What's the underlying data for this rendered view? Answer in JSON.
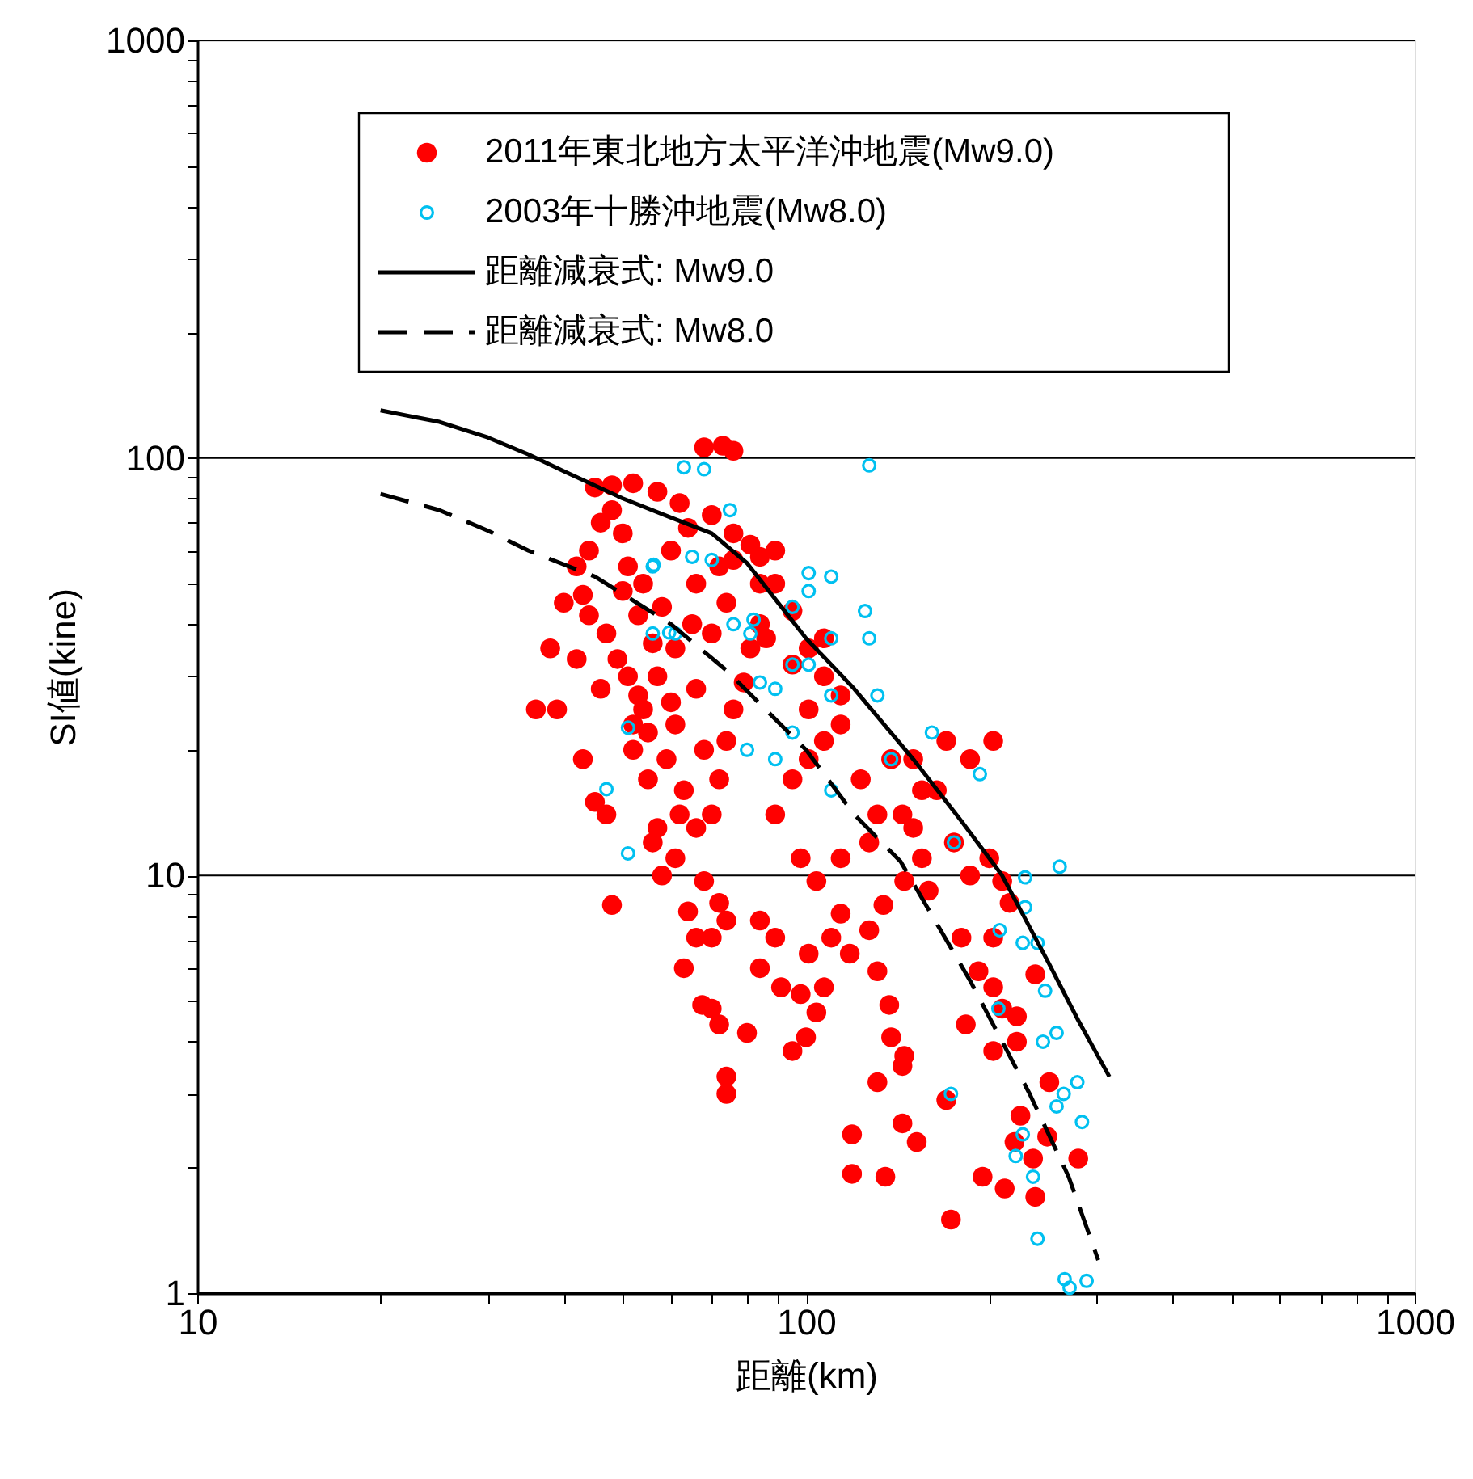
{
  "chart_data": {
    "type": "scatter",
    "xlabel": "距離(km)",
    "ylabel": "SI値(kine)",
    "log": "xy",
    "grid": "y",
    "legend": "top left",
    "xlim": [
      10,
      1000
    ],
    "ylim": [
      1,
      1000
    ],
    "xticks": [
      10,
      {
        "value": 20,
        "label": null
      },
      {
        "value": 30,
        "label": null
      },
      {
        "value": 40,
        "label": null
      },
      {
        "value": 50,
        "label": null
      },
      {
        "value": 60,
        "label": null
      },
      {
        "value": 70,
        "label": null
      },
      {
        "value": 80,
        "label": null
      },
      {
        "value": 90,
        "label": null
      },
      100,
      {
        "value": 200,
        "label": null
      },
      {
        "value": 300,
        "label": null
      },
      {
        "value": 400,
        "label": null
      },
      {
        "value": 500,
        "label": null
      },
      {
        "value": 600,
        "label": null
      },
      {
        "value": 700,
        "label": null
      },
      {
        "value": 800,
        "label": null
      },
      {
        "value": 900,
        "label": null
      },
      1000
    ],
    "yticks": [
      1,
      {
        "value": 2,
        "label": null
      },
      {
        "value": 3,
        "label": null
      },
      {
        "value": 4,
        "label": null
      },
      {
        "value": 5,
        "label": null
      },
      {
        "value": 6,
        "label": null
      },
      {
        "value": 7,
        "label": null
      },
      {
        "value": 8,
        "label": null
      },
      {
        "value": 9,
        "label": null
      },
      10,
      {
        "value": 20,
        "label": null
      },
      {
        "value": 30,
        "label": null
      },
      {
        "value": 40,
        "label": null
      },
      {
        "value": 50,
        "label": null
      },
      {
        "value": 60,
        "label": null
      },
      {
        "value": 70,
        "label": null
      },
      {
        "value": 80,
        "label": null
      },
      {
        "value": 90,
        "label": null
      },
      100,
      {
        "value": 200,
        "label": null
      },
      {
        "value": 300,
        "label": null
      },
      {
        "value": 400,
        "label": null
      },
      {
        "value": 500,
        "label": null
      },
      {
        "value": 600,
        "label": null
      },
      {
        "value": 700,
        "label": null
      },
      {
        "value": 800,
        "label": null
      },
      {
        "value": 900,
        "label": null
      },
      1000
    ],
    "series": [
      {
        "name": "2011年東北地方太平洋沖地震(Mw9.0)",
        "type": "scatter",
        "marker": "circle",
        "color": "#ff0000",
        "x": [
          68,
          73,
          76,
          48,
          52,
          57,
          62,
          70,
          76,
          81,
          84,
          89,
          39,
          42,
          44,
          43,
          45,
          47,
          46,
          48,
          50,
          51,
          54,
          53,
          56,
          57,
          54,
          61,
          59,
          63,
          66,
          57,
          70,
          72,
          74,
          76,
          79,
          66,
          61,
          70,
          74,
          66,
          81,
          84,
          86,
          51,
          52,
          55,
          61,
          68,
          72,
          74,
          84,
          89,
          70,
          66,
          63,
          70,
          72,
          74,
          74,
          67.5,
          80,
          91,
          84,
          101,
          98,
          95,
          100,
          104,
          107,
          110,
          114,
          118,
          127,
          134,
          131,
          137,
          138,
          144,
          131,
          119,
          119,
          135,
          144,
          152,
          170,
          173,
          145,
          89,
          95,
          101,
          107,
          114,
          123,
          131,
          127,
          114,
          104,
          98,
          101,
          107,
          114,
          95,
          101,
          107,
          95,
          84,
          76,
          72,
          89,
          138,
          150,
          155,
          164,
          170,
          186,
          203,
          175,
          186,
          200,
          210,
          216,
          203,
          180,
          192,
          203,
          210,
          222,
          222,
          203,
          183,
          238,
          220,
          236,
          238,
          212,
          195,
          249,
          280,
          251,
          225,
          155,
          159,
          145,
          150,
          144,
          36,
          38,
          40,
          42,
          44,
          46,
          45,
          48,
          50,
          47,
          49,
          53,
          55,
          58,
          60,
          64,
          65,
          68,
          62,
          58,
          64,
          52,
          56,
          60,
          43
        ],
        "values": [
          106,
          107,
          104,
          86,
          87,
          83,
          78,
          73,
          66,
          62,
          58,
          50,
          25,
          33,
          42,
          19,
          15,
          14,
          28,
          8.5,
          66,
          55,
          50,
          42,
          36,
          30,
          25,
          23,
          19,
          16,
          13,
          13,
          14,
          17,
          21,
          25,
          29,
          28,
          35,
          38,
          45,
          50,
          35,
          40,
          37,
          30,
          23,
          17,
          11,
          9.7,
          8.6,
          7.8,
          7.8,
          7.1,
          7.1,
          7.1,
          6,
          4.8,
          4.4,
          3.3,
          3.0,
          4.9,
          4.2,
          5.4,
          6,
          6.5,
          5.2,
          3.8,
          4.1,
          4.7,
          5.4,
          7.1,
          8.1,
          6.5,
          7.4,
          8.5,
          5.9,
          4.9,
          4.1,
          3.5,
          3.2,
          2.4,
          1.93,
          1.9,
          2.55,
          2.3,
          2.9,
          1.5,
          3.7,
          14,
          17,
          19,
          21,
          23,
          17,
          14,
          12,
          11,
          9.7,
          11,
          25,
          30,
          27,
          32,
          35,
          37,
          43,
          50,
          57,
          55,
          60,
          19,
          19,
          16,
          16,
          21,
          19,
          21,
          12,
          10,
          11,
          9.7,
          8.6,
          7.1,
          7.1,
          5.9,
          5.4,
          4.8,
          4.6,
          4.0,
          3.8,
          4.4,
          5.8,
          2.3,
          2.1,
          1.7,
          1.78,
          1.9,
          2.37,
          2.1,
          3.2,
          2.66,
          11,
          9.2,
          9.7,
          13,
          14,
          25,
          35,
          45,
          55,
          60,
          70,
          85,
          75,
          48,
          38,
          33,
          27,
          22,
          44,
          60,
          68,
          40,
          20,
          14,
          10,
          8.2,
          20,
          12,
          26,
          47
        ]
      },
      {
        "name": "2003年十勝沖地震(Mw8.0)",
        "type": "scatter",
        "marker": "circle",
        "color": "#00c0f0",
        "x": [
          63,
          68,
          127,
          75,
          65,
          70,
          56,
          101,
          110,
          125,
          101,
          95,
          82,
          110,
          127,
          56,
          61,
          76,
          81,
          95,
          101,
          84,
          89,
          110,
          131,
          161,
          193,
          95,
          80,
          89,
          110,
          138,
          175,
          261,
          229,
          229,
          208,
          227,
          240,
          247,
          207,
          245,
          258,
          173,
          279,
          265,
          258,
          284,
          227,
          221,
          236,
          240,
          266,
          289,
          271,
          47,
          51,
          51,
          56.2,
          59.6
        ],
        "values": [
          95,
          94,
          96,
          75,
          58,
          57,
          55,
          53,
          52,
          43,
          48,
          44,
          41,
          37,
          37,
          38,
          38,
          40,
          38,
          32,
          32,
          29,
          28,
          27,
          27,
          22,
          17.5,
          22,
          20,
          19,
          16,
          19,
          12,
          10.5,
          9.9,
          8.4,
          7.4,
          6.9,
          6.9,
          5.3,
          4.8,
          4.0,
          4.2,
          3.0,
          3.2,
          3.0,
          2.8,
          2.57,
          2.4,
          2.13,
          1.9,
          1.35,
          1.08,
          1.07,
          1.03,
          16.1,
          11.3,
          22.6,
          55.5,
          38.2
        ]
      },
      {
        "name": "距離減衰式: Mw9.0",
        "type": "line",
        "marker": "none",
        "line_style": "solid",
        "color": "#000000",
        "x": [
          20,
          25,
          30,
          35,
          40,
          50,
          60,
          70,
          80,
          90,
          100,
          120,
          150,
          180,
          210,
          250,
          280,
          315
        ],
        "values": [
          130,
          122,
          112,
          102,
          93,
          80,
          72,
          66,
          56,
          45,
          37,
          28,
          19,
          13.5,
          10,
          6.2,
          4.5,
          3.3
        ]
      },
      {
        "name": "距離減衰式: Mw8.0",
        "type": "line",
        "marker": "none",
        "line_style": "dashed",
        "color": "#000000",
        "x": [
          20,
          25,
          30,
          35,
          45,
          60,
          74,
          100,
          120,
          143,
          186,
          233,
          270,
          302
        ],
        "values": [
          82,
          75,
          67,
          60,
          52,
          40,
          31,
          20,
          14,
          10.8,
          5.6,
          3.0,
          1.9,
          1.2
        ]
      }
    ]
  }
}
